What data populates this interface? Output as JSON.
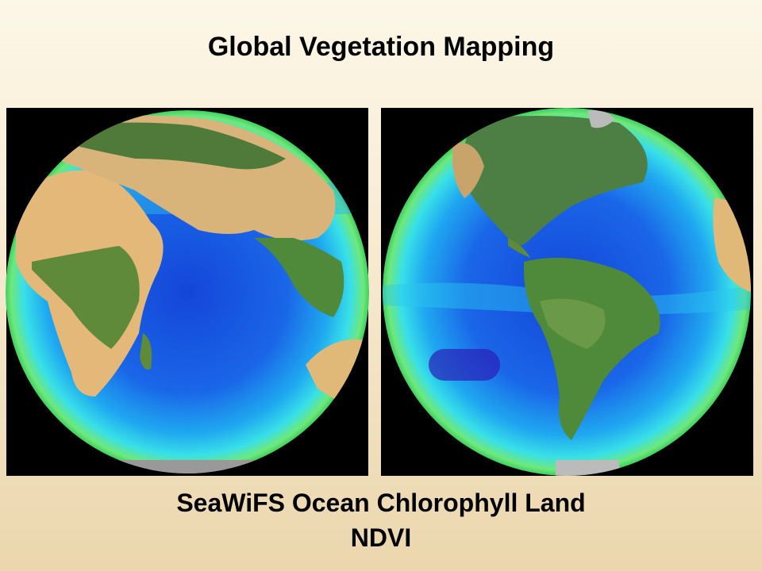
{
  "slide": {
    "title": "Global Vegetation Mapping",
    "caption": [
      "SeaWiFS Ocean Chlorophyll Land",
      "NDVI"
    ]
  }
}
